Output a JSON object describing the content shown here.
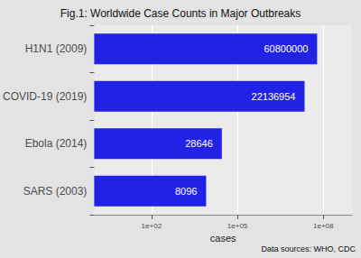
{
  "chart_data": {
    "type": "bar",
    "orientation": "horizontal",
    "log": "x",
    "title": "Fig.1: Worldwide Case Counts in Major Outbreaks",
    "x_label": "cases",
    "caption": "Data sources: WHO, CDC",
    "categories": [
      "H1N1 (2009)",
      "COVID-19 (2019)",
      "Ebola (2014)",
      "SARS (2003)"
    ],
    "values": [
      60800000,
      22136954,
      28646,
      8096
    ],
    "color": "#2222e6",
    "xlim": [
      1,
      1000000000
    ],
    "xticks": [
      {
        "value": 100,
        "label": "1e+02"
      },
      {
        "value": 100000,
        "label": "1e+05"
      },
      {
        "value": 100000000,
        "label": "1e+08"
      }
    ],
    "grid": true,
    "data_labels": true
  }
}
